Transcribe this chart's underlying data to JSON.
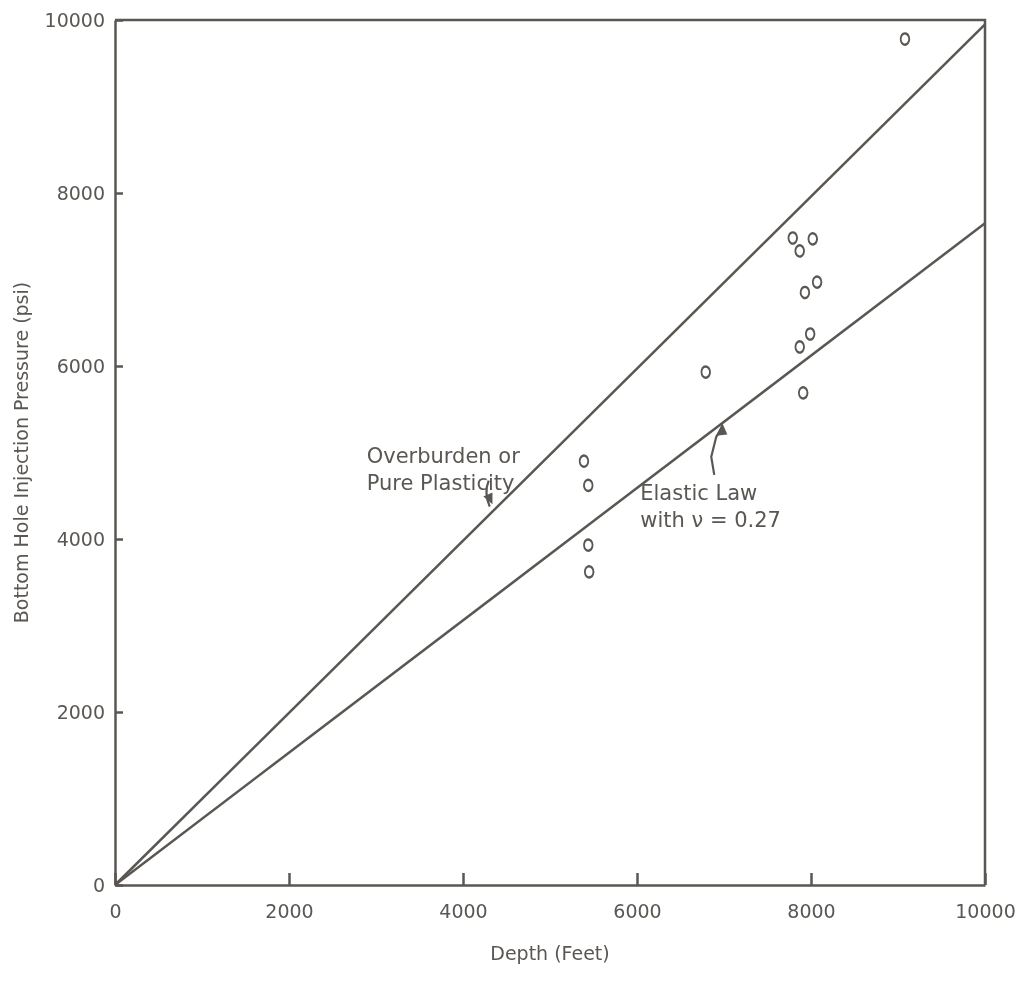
{
  "chart_data": {
    "type": "scatter",
    "xlabel": "Depth (Feet)",
    "ylabel": "Bottom Hole Injection Pressure (psi)",
    "xlim": [
      0,
      10000
    ],
    "ylim": [
      0,
      10000
    ],
    "xticks": [
      0,
      2000,
      4000,
      6000,
      8000,
      10000
    ],
    "yticks": [
      0,
      2000,
      4000,
      6000,
      8000,
      10000
    ],
    "grid": false,
    "series": [
      {
        "color": "#5a5753",
        "marker": "circle",
        "x": [
          9080,
          5390,
          5440,
          5440,
          5450,
          6790,
          7790,
          8020,
          7870,
          8070,
          7930,
          7990,
          7870,
          7910
        ],
        "values": [
          9780,
          4900,
          4620,
          3930,
          3620,
          5930,
          7480,
          7470,
          7330,
          6970,
          6850,
          6370,
          6220,
          5690
        ]
      },
      {
        "type": "line",
        "color": "#5a5753",
        "marker": "none",
        "line_style": "solid",
        "x": [
          0,
          10000
        ],
        "values": [
          0,
          9950
        ]
      },
      {
        "type": "line",
        "color": "#5a5753",
        "marker": "none",
        "line_style": "solid",
        "x": [
          0,
          10000
        ],
        "values": [
          0,
          7650
        ]
      }
    ],
    "annotations": [
      {
        "text": "Overburden or\nPure Plasticity",
        "x": 4330,
        "y": 4420
      },
      {
        "text": "Elastic Law\nwith ν = 0.27",
        "x": 6980,
        "y": 5320
      }
    ]
  }
}
